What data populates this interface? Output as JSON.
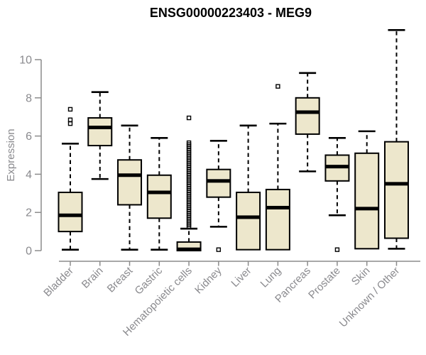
{
  "chart_data": {
    "type": "boxplot",
    "title": "ENSG00000223403 - MEG9",
    "ylabel": "Expression",
    "xlabel": "",
    "grid": false,
    "legend": false,
    "ylim": [
      -0.55,
      11.7
    ],
    "ytick_values": [
      0,
      2,
      4,
      6,
      8,
      10
    ],
    "ytick_labels": [
      "0",
      "2",
      "4",
      "6",
      "8",
      "10"
    ],
    "axis_color": "#8C8C8C",
    "tick_label_color": "#8A8A8E",
    "box_fill": "#EDE7CC",
    "box_border": "#000000",
    "median_color": "#000000",
    "categories": [
      "Bladder",
      "Brain",
      "Breast",
      "Gastric",
      "Hematopoietic cells",
      "Kidney",
      "Liver",
      "Lung",
      "Pancreas",
      "Prostate",
      "Skin",
      "Unknown / Other"
    ],
    "series": [
      {
        "category": "Bladder",
        "whisker_low": 0.05,
        "q1": 1.0,
        "median": 1.85,
        "q3": 3.05,
        "whisker_high": 5.6,
        "outliers": [
          6.65,
          6.85,
          7.4
        ]
      },
      {
        "category": "Brain",
        "whisker_low": 3.75,
        "q1": 5.5,
        "median": 6.45,
        "q3": 6.95,
        "whisker_high": 8.3,
        "outliers": []
      },
      {
        "category": "Breast",
        "whisker_low": 0.05,
        "q1": 2.4,
        "median": 3.95,
        "q3": 4.75,
        "whisker_high": 6.55,
        "outliers": []
      },
      {
        "category": "Gastric",
        "whisker_low": 0.05,
        "q1": 1.7,
        "median": 3.05,
        "q3": 3.95,
        "whisker_high": 5.9,
        "outliers": []
      },
      {
        "category": "Hematopoietic cells",
        "whisker_low": null,
        "q1": 0.0,
        "median": 0.07,
        "q3": 0.45,
        "whisker_high": 1.15,
        "outliers": [
          6.95,
          5.65,
          5.55,
          5.45,
          5.35,
          5.25,
          5.15,
          5.05,
          4.95,
          4.85,
          4.75,
          4.65,
          4.55,
          4.45,
          4.35,
          4.25,
          4.15,
          4.05,
          3.95,
          3.85,
          3.75,
          3.65,
          3.55,
          3.45,
          3.35,
          3.25,
          3.15,
          3.05,
          2.95,
          2.85,
          2.75,
          2.65,
          2.55,
          2.45,
          2.35,
          2.25,
          2.15,
          2.05,
          1.95,
          1.85,
          1.75,
          1.65,
          1.55,
          1.45,
          1.35,
          1.25
        ]
      },
      {
        "category": "Kidney",
        "whisker_low": 1.25,
        "q1": 2.8,
        "median": 3.65,
        "q3": 4.25,
        "whisker_high": 5.75,
        "outliers": [
          0.05
        ]
      },
      {
        "category": "Liver",
        "whisker_low": null,
        "q1": 0.05,
        "median": 1.75,
        "q3": 3.05,
        "whisker_high": 6.55,
        "outliers": []
      },
      {
        "category": "Lung",
        "whisker_low": null,
        "q1": 0.05,
        "median": 2.25,
        "q3": 3.2,
        "whisker_high": 6.65,
        "outliers": [
          8.6
        ]
      },
      {
        "category": "Pancreas",
        "whisker_low": 4.15,
        "q1": 6.1,
        "median": 7.25,
        "q3": 8.0,
        "whisker_high": 9.3,
        "outliers": []
      },
      {
        "category": "Prostate",
        "whisker_low": 1.85,
        "q1": 3.65,
        "median": 4.4,
        "q3": 5.0,
        "whisker_high": 5.9,
        "outliers": [
          0.05
        ]
      },
      {
        "category": "Skin",
        "whisker_low": null,
        "q1": 0.1,
        "median": 2.2,
        "q3": 5.1,
        "whisker_high": 6.25,
        "outliers": []
      },
      {
        "category": "Unknown / Other",
        "whisker_low": 0.1,
        "q1": 0.65,
        "median": 3.5,
        "q3": 5.7,
        "whisker_high": 11.55,
        "outliers": []
      }
    ]
  }
}
